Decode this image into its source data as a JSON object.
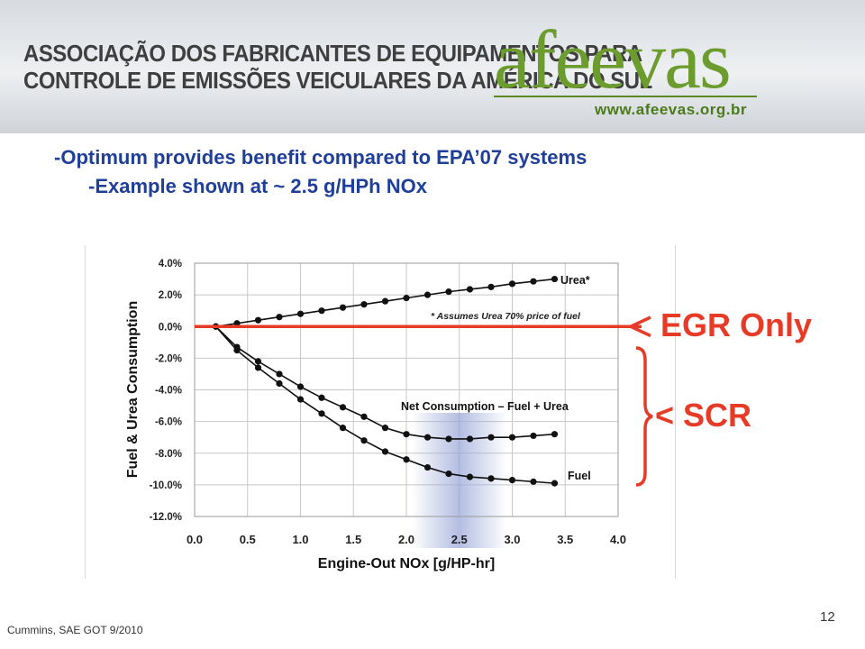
{
  "header": {
    "org_line1": "ASSOCIAÇÃO DOS FABRICANTES DE EQUIPAMENTOS PARA",
    "org_line2": "CONTROLE DE EMISSÕES VEICULARES DA AMÉRICA DO SUL",
    "logo": "afeevas",
    "url": "www.afeevas.org.br"
  },
  "bullets": [
    "-Optimum provides benefit compared to EPA’07 systems",
    "-Example shown at ~ 2.5 g/HPh NOx"
  ],
  "footer": {
    "source": "Cummins, SAE GOT 9/2010",
    "page": "12"
  },
  "annotations": {
    "egr": "EGR Only",
    "scr": "< SCR"
  },
  "colors": {
    "title": "#1f3f99",
    "accent_red": "#e63b26",
    "logo_green": "#6c9c2e",
    "highlight": "#9aa8d8"
  },
  "chart_data": {
    "type": "line",
    "xlabel": "Engine-Out NOx [g/HP-hr]",
    "ylabel": "Fuel & Urea Consumption",
    "xlim": [
      0.0,
      4.0
    ],
    "ylim": [
      -12.0,
      4.0
    ],
    "x_ticks": [
      "0.0",
      "0.5",
      "1.0",
      "1.5",
      "2.0",
      "2.5",
      "3.0",
      "3.5",
      "4.0"
    ],
    "y_ticks": [
      "4.0%",
      "2.0%",
      "0.0%",
      "-2.0%",
      "-4.0%",
      "-6.0%",
      "-8.0%",
      "-10.0%",
      "-12.0%"
    ],
    "y_tick_values": [
      4,
      2,
      0,
      -2,
      -4,
      -6,
      -8,
      -10,
      -12
    ],
    "grid": true,
    "series": [
      {
        "name": "Urea*",
        "x": [
          0.2,
          0.4,
          0.6,
          0.8,
          1.0,
          1.2,
          1.4,
          1.6,
          1.8,
          2.0,
          2.2,
          2.4,
          2.6,
          2.8,
          3.0,
          3.2,
          3.4
        ],
        "values": [
          0.0,
          0.2,
          0.4,
          0.6,
          0.8,
          1.0,
          1.2,
          1.4,
          1.6,
          1.8,
          2.0,
          2.2,
          2.35,
          2.5,
          2.7,
          2.85,
          3.0
        ]
      },
      {
        "name": "Net Consumption – Fuel + Urea",
        "x": [
          0.2,
          0.4,
          0.6,
          0.8,
          1.0,
          1.2,
          1.4,
          1.6,
          1.8,
          2.0,
          2.2,
          2.4,
          2.6,
          2.8,
          3.0,
          3.2,
          3.4
        ],
        "values": [
          0.0,
          -1.3,
          -2.2,
          -3.0,
          -3.8,
          -4.5,
          -5.1,
          -5.7,
          -6.4,
          -6.8,
          -7.0,
          -7.1,
          -7.1,
          -7.0,
          -7.0,
          -6.9,
          -6.8
        ]
      },
      {
        "name": "Fuel",
        "x": [
          0.2,
          0.4,
          0.6,
          0.8,
          1.0,
          1.2,
          1.4,
          1.6,
          1.8,
          2.0,
          2.2,
          2.4,
          2.6,
          2.8,
          3.0,
          3.2,
          3.4
        ],
        "values": [
          0.0,
          -1.5,
          -2.6,
          -3.6,
          -4.6,
          -5.5,
          -6.4,
          -7.2,
          -7.9,
          -8.4,
          -8.9,
          -9.3,
          -9.5,
          -9.6,
          -9.7,
          -9.8,
          -9.9
        ]
      }
    ],
    "footnote": "* Assumes Urea 70% price of fuel",
    "reference_line_y": 0.0
  }
}
